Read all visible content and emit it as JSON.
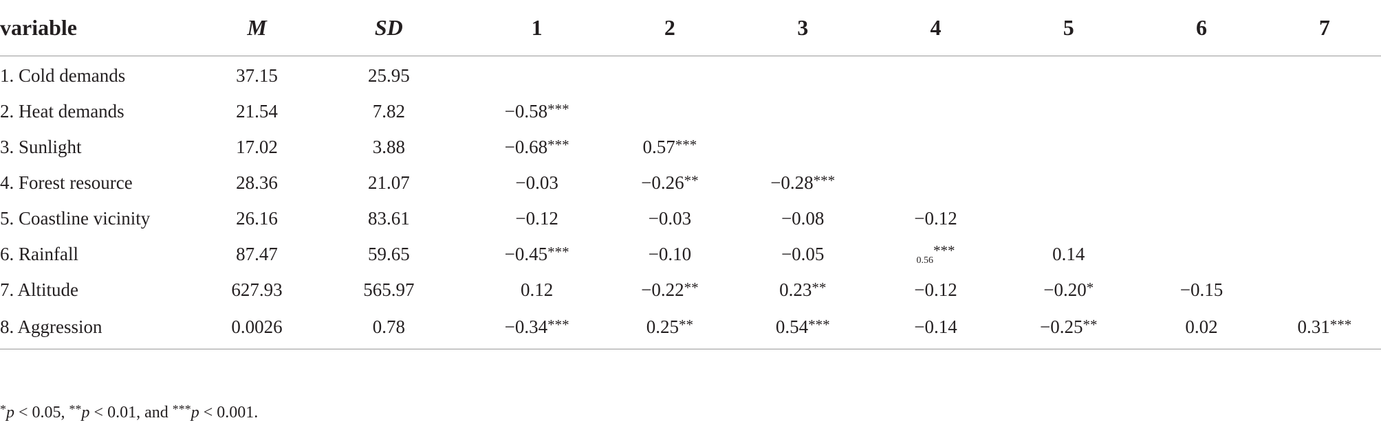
{
  "table": {
    "headers": [
      "variable",
      "M",
      "SD",
      "1",
      "2",
      "3",
      "4",
      "5",
      "6",
      "7"
    ],
    "rows": [
      {
        "variable": "1. Cold demands",
        "M": "37.15",
        "SD": "25.95",
        "c": [
          "",
          "",
          "",
          "",
          "",
          "",
          ""
        ]
      },
      {
        "variable": "2. Heat demands",
        "M": "21.54",
        "SD": "7.82",
        "c": [
          "−0.58***",
          "",
          "",
          "",
          "",
          "",
          ""
        ]
      },
      {
        "variable": "3. Sunlight",
        "M": "17.02",
        "SD": "3.88",
        "c": [
          "−0.68***",
          "0.57***",
          "",
          "",
          "",
          "",
          ""
        ]
      },
      {
        "variable": "4. Forest resource",
        "M": "28.36",
        "SD": "21.07",
        "c": [
          "−0.03",
          "−0.26**",
          "−0.28***",
          "",
          "",
          "",
          ""
        ]
      },
      {
        "variable": "5. Coastline vicinity",
        "M": "26.16",
        "SD": "83.61",
        "c": [
          "−0.12",
          "−0.03",
          "−0.08",
          "−0.12",
          "",
          "",
          ""
        ]
      },
      {
        "variable": "6. Rainfall",
        "M": "87.47",
        "SD": "59.65",
        "c": [
          "−0.45***",
          "−0.10",
          "−0.05",
          "0.56***",
          "0.14",
          "",
          ""
        ]
      },
      {
        "variable": "7. Altitude",
        "M": "627.93",
        "SD": "565.97",
        "c": [
          "0.12",
          "−0.22**",
          "0.23**",
          "−0.12",
          "−0.20*",
          "−0.15",
          ""
        ]
      },
      {
        "variable": "8. Aggression",
        "M": "0.0026",
        "SD": "0.78",
        "c": [
          "−0.34***",
          "0.25**",
          "0.54***",
          "−0.14",
          "−0.25**",
          "0.02",
          "0.31***"
        ]
      }
    ]
  },
  "footnote": {
    "star1": "*",
    "p1": "p",
    "t1": " < 0.05, ",
    "star2": "**",
    "p2": "p",
    "t2": " < 0.01, and ",
    "star3": "***",
    "p3": "p",
    "t3": " < 0.001."
  }
}
